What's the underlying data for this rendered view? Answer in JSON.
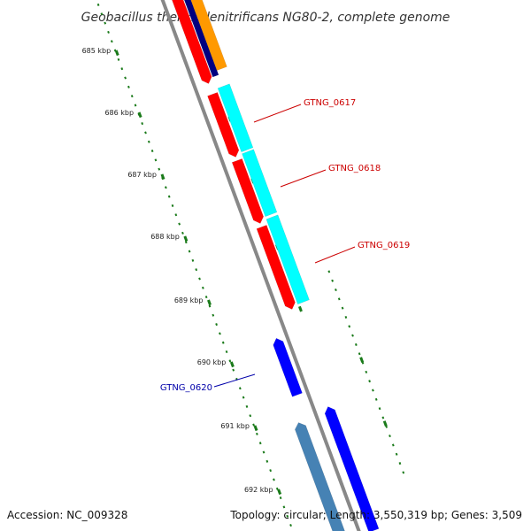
{
  "title": "Geobacillus thermodenitrificans NG80-2, complete genome",
  "footer": {
    "accession": "Accession: NC_009328",
    "summary": "Topology: circular; Length: 3,550,319 bp; Genes: 3,509"
  },
  "scale": {
    "labels": [
      "685 kbp",
      "686 kbp",
      "687 kbp",
      "688 kbp",
      "689 kbp",
      "690 kbp",
      "691 kbp",
      "692 kbp"
    ]
  },
  "gene_labels": [
    {
      "text": "GTNG_0617",
      "color": "#cc0000"
    },
    {
      "text": "GTNG_0618",
      "color": "#cc0000"
    },
    {
      "text": "GTNG_0619",
      "color": "#cc0000"
    },
    {
      "text": "GTNG_0620",
      "color": "#0000aa"
    }
  ],
  "colors": {
    "backbone": "#888888",
    "tick": "#1a7a1a",
    "red": "#ff0000",
    "cyan": "#00ffff",
    "blue": "#0000ff",
    "navy": "#000080",
    "orange": "#ff9900",
    "steelblue": "#4682b4"
  }
}
